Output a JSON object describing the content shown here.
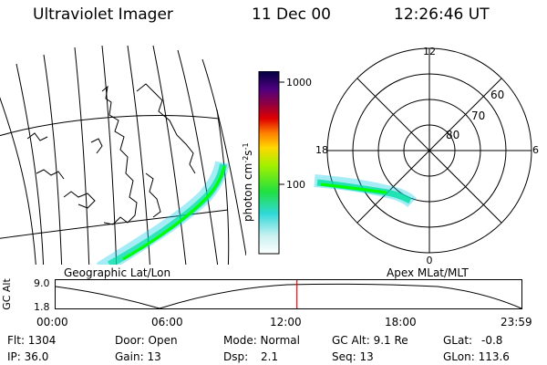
{
  "header": {
    "instrument": "Ultraviolet Imager",
    "date": "11 Dec 00",
    "time": "12:26:46 UT"
  },
  "colorbar": {
    "unit": "photon cm",
    "unit_exp1": "-2",
    "unit_s": "s",
    "unit_exp2": "-1",
    "ticks": [
      "1000",
      "100"
    ]
  },
  "panels": {
    "geo_label": "Geographic Lat/Lon",
    "polar_label": "Apex MLat/MLT"
  },
  "polar": {
    "mlt_labels": {
      "top": "12",
      "left": "18",
      "right": "6",
      "bottom": "0"
    },
    "lat_labels": [
      "60",
      "70",
      "80"
    ]
  },
  "altitude": {
    "axis_label": "GC Alt",
    "ticks": [
      "9.0",
      "1.8"
    ],
    "time_ticks": [
      "00:00",
      "06:00",
      "12:00",
      "18:00",
      "23:59"
    ],
    "current_fraction": 0.518
  },
  "status": {
    "flt": "Flt: 1304",
    "ip": "IP: 36.0",
    "door": "Door: Open",
    "gain": "Gain: 13",
    "mode": "Mode: Normal",
    "dsp_label": "Dsp:",
    "dsp_value": "2.1",
    "gcalt": "GC Alt: 9.1 Re",
    "seq": "Seq: 13",
    "glat_label": "GLat:",
    "glat_value": "-0.8",
    "glon": "GLon: 113.6"
  },
  "colors": {
    "aurora_high": "#00ff00",
    "aurora_mid": "#00e0a0",
    "aurora_low": "#00c8e8",
    "marker": "#ff0000"
  }
}
